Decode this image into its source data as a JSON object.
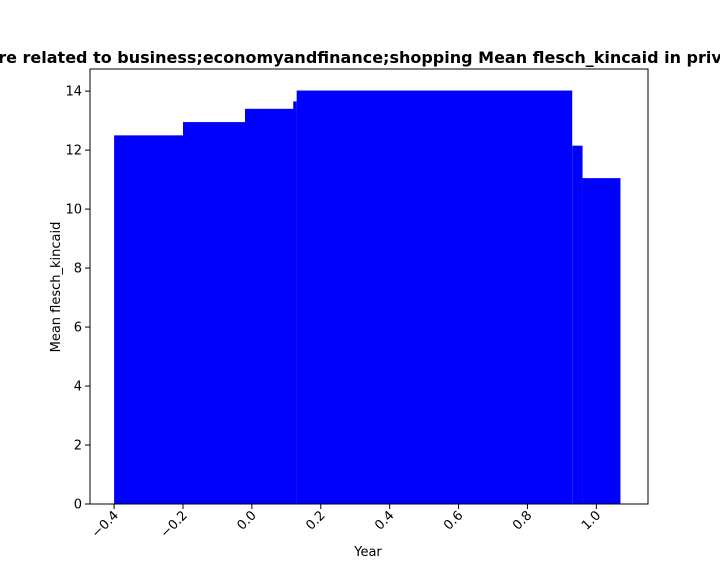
{
  "chart_data": {
    "type": "bar",
    "title": "re related to business;economyandfinance;shopping Mean flesch_kincaid in priv",
    "xlabel": "Year",
    "ylabel": "Mean flesch_kincaid",
    "xlim": [
      -0.47,
      1.15
    ],
    "ylim": [
      0,
      14.75
    ],
    "x_ticks": [
      -0.4,
      -0.2,
      0.0,
      0.2,
      0.4,
      0.6,
      0.8,
      1.0
    ],
    "x_tick_labels": [
      "−0.4",
      "−0.2",
      "0.0",
      "0.2",
      "0.4",
      "0.6",
      "0.8",
      "1.0"
    ],
    "y_ticks": [
      0,
      2,
      4,
      6,
      8,
      10,
      12,
      14
    ],
    "y_tick_labels": [
      "0",
      "2",
      "4",
      "6",
      "8",
      "10",
      "12",
      "14"
    ],
    "bar_color": "#0000ff",
    "bars": [
      {
        "x0": -0.4,
        "x1": -0.2,
        "value": 12.5
      },
      {
        "x0": -0.2,
        "x1": -0.02,
        "value": 12.95
      },
      {
        "x0": -0.02,
        "x1": 0.13,
        "value": 13.4
      },
      {
        "x0": 0.12,
        "x1": 0.13,
        "value": 13.65
      },
      {
        "x0": 0.13,
        "x1": 0.93,
        "value": 14.02
      },
      {
        "x0": 0.93,
        "x1": 0.96,
        "value": 12.15
      },
      {
        "x0": 0.96,
        "x1": 1.07,
        "value": 11.05
      }
    ],
    "grid": false,
    "legend": "none"
  }
}
